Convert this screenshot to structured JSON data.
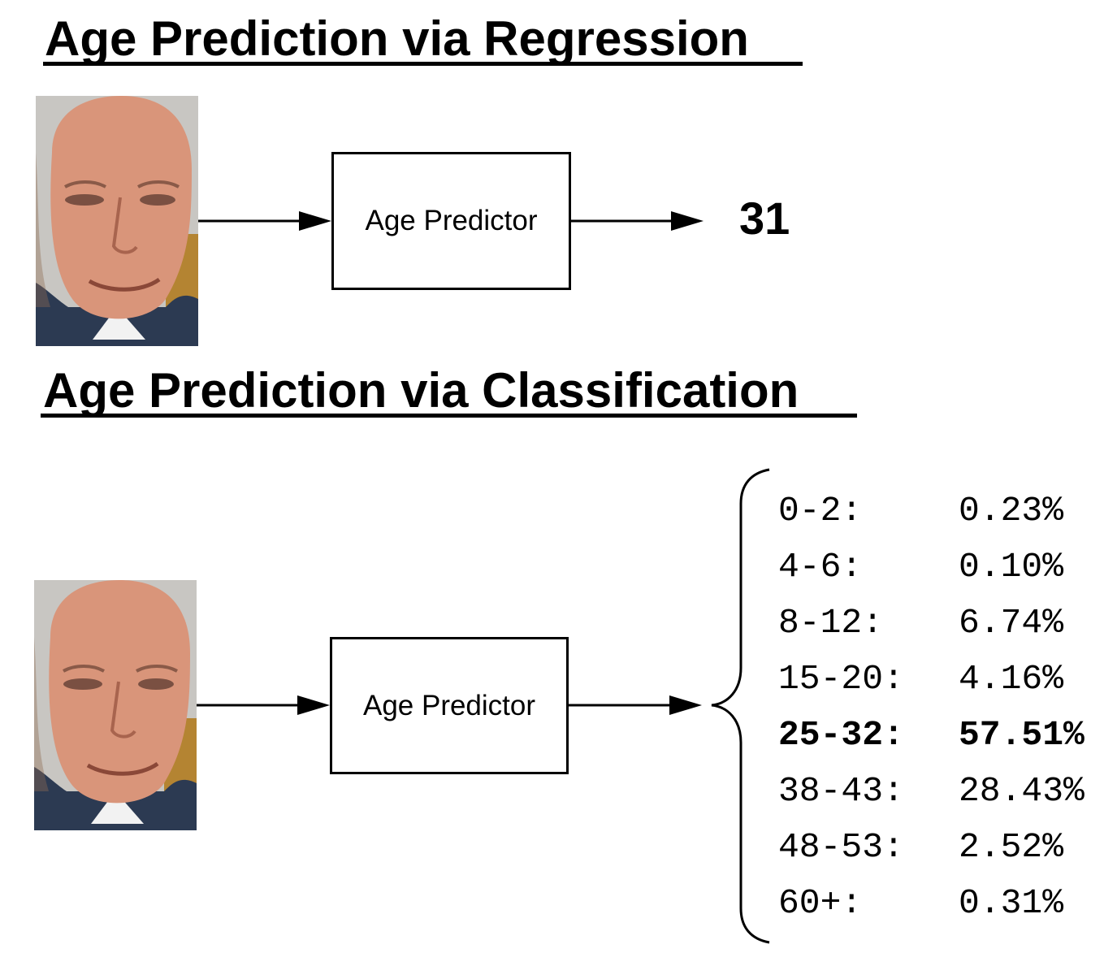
{
  "regression": {
    "title": "Age Prediction via Regression",
    "predictor_label": "Age Predictor",
    "output": "31"
  },
  "classification": {
    "title": "Age Prediction via Classification",
    "predictor_label": "Age Predictor",
    "rows": [
      {
        "range": "0-2:",
        "percent": "0.23%"
      },
      {
        "range": "4-6:",
        "percent": "0.10%"
      },
      {
        "range": "8-12:",
        "percent": "6.74%"
      },
      {
        "range": "15-20:",
        "percent": "4.16%"
      },
      {
        "range": "25-32:",
        "percent": "57.51%",
        "highlighted": true
      },
      {
        "range": "38-43:",
        "percent": "28.43%"
      },
      {
        "range": "48-53:",
        "percent": "2.52%"
      },
      {
        "range": "60+:",
        "percent": "0.31%"
      }
    ]
  },
  "colors": {
    "stroke": "#000000",
    "skin": "#d9957a",
    "background_gray": "#c8c6c2",
    "jacket": "#2c3a52",
    "wall_gold": "#b48432"
  }
}
